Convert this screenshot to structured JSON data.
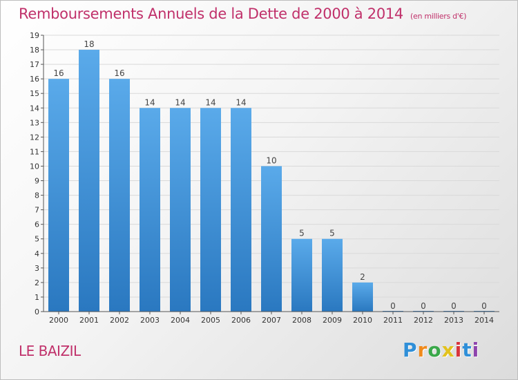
{
  "header": {
    "title": "Remboursements Annuels de la Dette de 2000 à 2014",
    "unit": "(en milliers d'€)"
  },
  "footer": {
    "commune": "LE BAIZIL",
    "brand_letters": [
      "P",
      "r",
      "o",
      "x",
      "i",
      "t",
      "i"
    ]
  },
  "colors": {
    "title": "#c0306a",
    "bar_top": "#5aaaea",
    "bar_bottom": "#2a78c0",
    "brand": [
      "#2f8fd8",
      "#f08a1c",
      "#3aa84a",
      "#e2c21e",
      "#d8343c",
      "#2f8fd8",
      "#8e44ad"
    ]
  },
  "chart_data": {
    "type": "bar",
    "title": "Remboursements Annuels de la Dette de 2000 à 2014",
    "categories": [
      "2000",
      "2001",
      "2002",
      "2003",
      "2004",
      "2005",
      "2006",
      "2007",
      "2008",
      "2009",
      "2010",
      "2011",
      "2012",
      "2013",
      "2014"
    ],
    "values": [
      16,
      18,
      16,
      14,
      14,
      14,
      14,
      10,
      5,
      5,
      2,
      0,
      0,
      0,
      0
    ],
    "data_labels": [
      "16",
      "18",
      "16",
      "14",
      "14",
      "14",
      "14",
      "10",
      "5",
      "5",
      "2",
      "0",
      "0",
      "0",
      "0"
    ],
    "y_ticks": [
      "0",
      "1",
      "2",
      "3",
      "4",
      "5",
      "6",
      "7",
      "8",
      "9",
      "10",
      "11",
      "12",
      "13",
      "14",
      "15",
      "16",
      "17",
      "18",
      "19"
    ],
    "ylim": [
      0,
      19
    ],
    "grid": true,
    "xlabel": "",
    "ylabel": ""
  }
}
